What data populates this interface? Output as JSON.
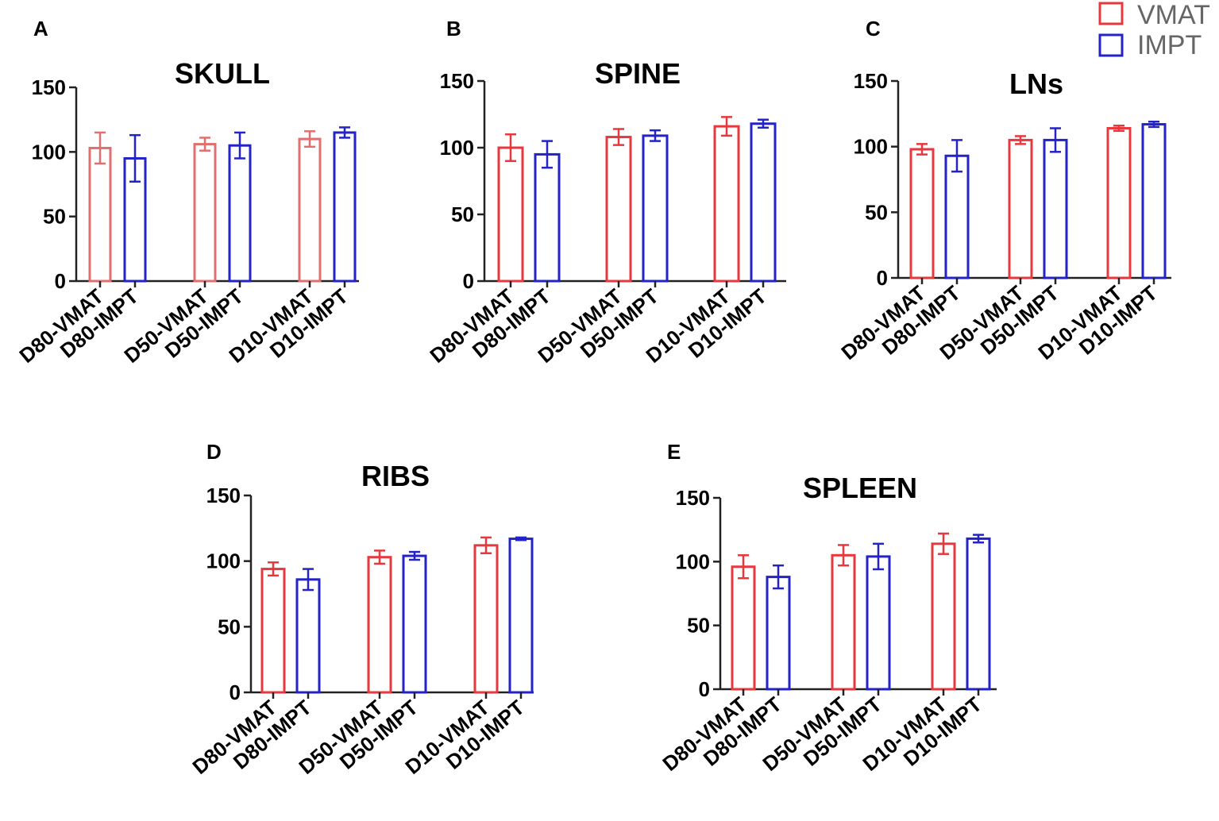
{
  "legend": {
    "items": [
      {
        "label": "VMAT",
        "color": "#e8383d"
      },
      {
        "label": "IMPT",
        "color": "#2323c8"
      }
    ]
  },
  "chart_data": [
    {
      "panel": "A",
      "type": "bar",
      "title": "SKULL",
      "ylim": [
        0,
        150
      ],
      "yticks": [
        0,
        50,
        100,
        150
      ],
      "categories": [
        "D80-VMAT",
        "D80-IMPT",
        "D50-VMAT",
        "D50-IMPT",
        "D10-VMAT",
        "D10-IMPT"
      ],
      "values": [
        103,
        95,
        106,
        105,
        110,
        115
      ],
      "errors": [
        12,
        18,
        5,
        10,
        6,
        4
      ],
      "series_colors": [
        "#e07070",
        "#2323c8",
        "#e07070",
        "#2323c8",
        "#e07070",
        "#2323c8"
      ]
    },
    {
      "panel": "B",
      "type": "bar",
      "title": "SPINE",
      "ylim": [
        0,
        150
      ],
      "yticks": [
        0,
        50,
        100,
        150
      ],
      "categories": [
        "D80-VMAT",
        "D80-IMPT",
        "D50-VMAT",
        "D50-IMPT",
        "D10-VMAT",
        "D10-IMPT"
      ],
      "values": [
        100,
        95,
        108,
        109,
        116,
        118
      ],
      "errors": [
        10,
        10,
        6,
        4,
        7,
        3
      ],
      "series_colors": [
        "#e8383d",
        "#2323c8",
        "#e8383d",
        "#2323c8",
        "#e8383d",
        "#2323c8"
      ]
    },
    {
      "panel": "C",
      "type": "bar",
      "title": "LNs",
      "ylim": [
        0,
        150
      ],
      "yticks": [
        0,
        50,
        100,
        150
      ],
      "categories": [
        "D80-VMAT",
        "D80-IMPT",
        "D50-VMAT",
        "D50-IMPT",
        "D10-VMAT",
        "D10-IMPT"
      ],
      "values": [
        98,
        93,
        105,
        105,
        114,
        117
      ],
      "errors": [
        4,
        12,
        3,
        9,
        2,
        2
      ],
      "series_colors": [
        "#e8383d",
        "#2323c8",
        "#e8383d",
        "#2323c8",
        "#e8383d",
        "#2323c8"
      ]
    },
    {
      "panel": "D",
      "type": "bar",
      "title": "RIBS",
      "ylim": [
        0,
        150
      ],
      "yticks": [
        0,
        50,
        100,
        150
      ],
      "categories": [
        "D80-VMAT",
        "D80-IMPT",
        "D50-VMAT",
        "D50-IMPT",
        "D10-VMAT",
        "D10-IMPT"
      ],
      "values": [
        94,
        86,
        103,
        104,
        112,
        117
      ],
      "errors": [
        5,
        8,
        5,
        3,
        6,
        1
      ],
      "series_colors": [
        "#e8383d",
        "#2323c8",
        "#e8383d",
        "#2323c8",
        "#e8383d",
        "#2323c8"
      ]
    },
    {
      "panel": "E",
      "type": "bar",
      "title": "SPLEEN",
      "ylim": [
        0,
        150
      ],
      "yticks": [
        0,
        50,
        100,
        150
      ],
      "categories": [
        "D80-VMAT",
        "D80-IMPT",
        "D50-VMAT",
        "D50-IMPT",
        "D10-VMAT",
        "D10-IMPT"
      ],
      "values": [
        96,
        88,
        105,
        104,
        114,
        118
      ],
      "errors": [
        9,
        9,
        8,
        10,
        8,
        3
      ],
      "series_colors": [
        "#e8383d",
        "#2323c8",
        "#e8383d",
        "#2323c8",
        "#e8383d",
        "#2323c8"
      ]
    }
  ]
}
